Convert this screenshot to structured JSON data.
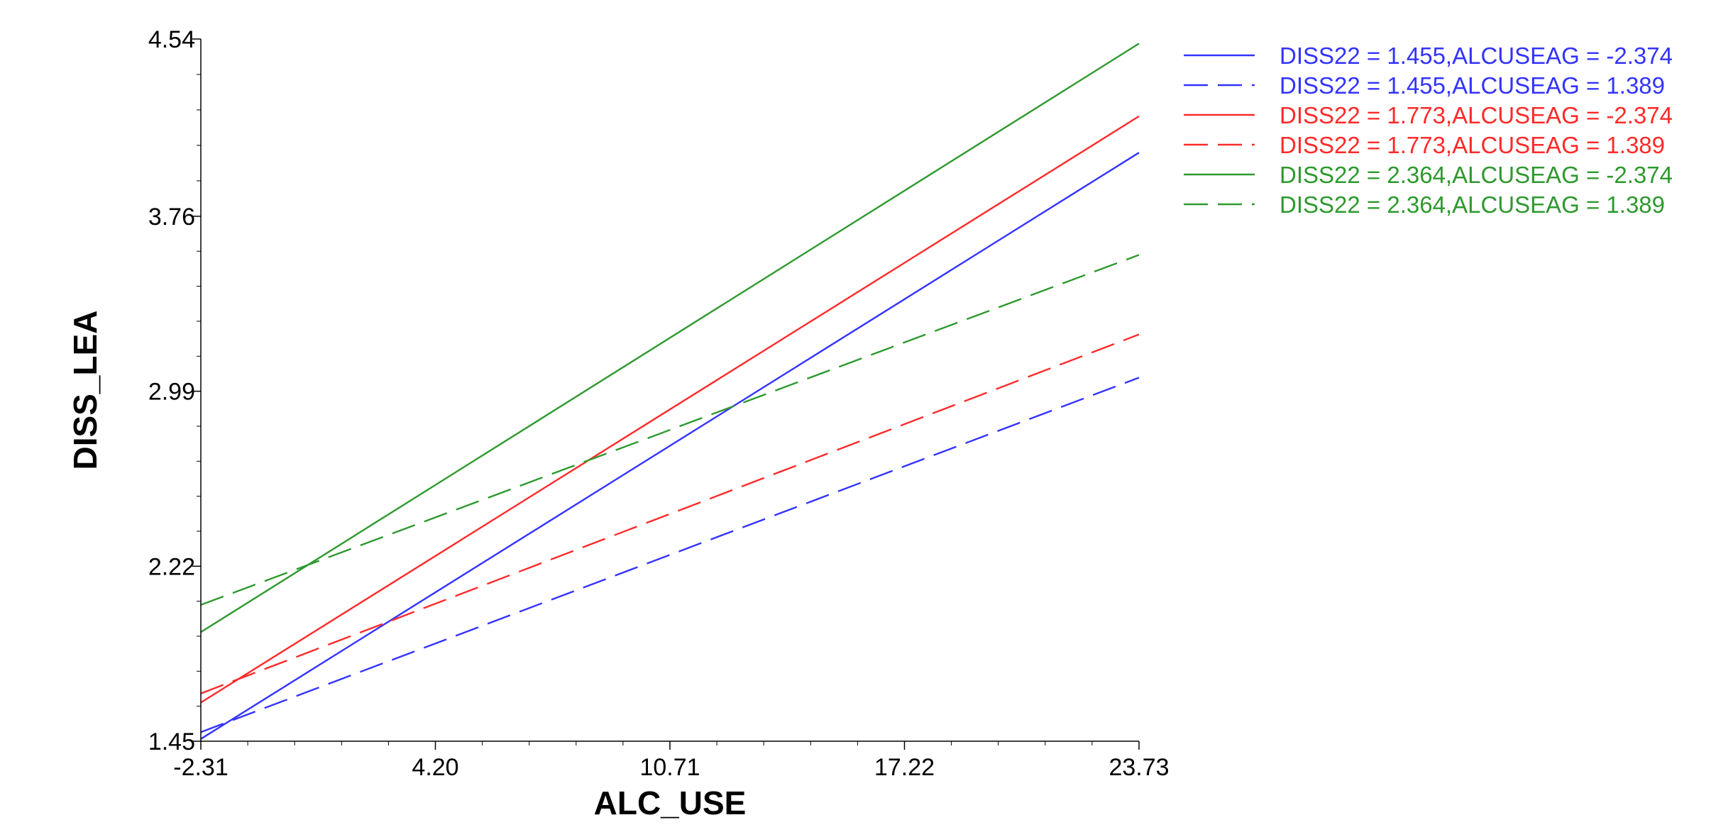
{
  "chart_data": {
    "type": "line",
    "title": "",
    "xlabel": "ALC_USE",
    "ylabel": "DISS_LEA",
    "xlim": [
      -2.31,
      23.73
    ],
    "ylim": [
      1.45,
      4.54
    ],
    "x_ticks": [
      -2.31,
      4.2,
      10.71,
      17.22,
      23.73
    ],
    "x_tick_labels": [
      "-2.31",
      "4.20",
      "10.71",
      "17.22",
      "23.73"
    ],
    "y_ticks": [
      1.45,
      2.22,
      2.99,
      3.76,
      4.54
    ],
    "y_tick_labels": [
      "1.45",
      "2.22",
      "2.99",
      "3.76",
      "4.54"
    ],
    "grid": false,
    "legend_position": "right",
    "series": [
      {
        "name": "DISS22 = 1.455,ALCUSEAG = -2.374",
        "color": "#3333ff",
        "dash": "solid",
        "x": [
          -2.31,
          23.73
        ],
        "y": [
          1.46,
          4.04
        ]
      },
      {
        "name": "DISS22 = 1.455,ALCUSEAG = 1.389",
        "color": "#3333ff",
        "dash": "dashed",
        "x": [
          -2.31,
          23.73
        ],
        "y": [
          1.49,
          3.05
        ]
      },
      {
        "name": "DISS22 = 1.773,ALCUSEAG = -2.374",
        "color": "#ff2a2a",
        "dash": "solid",
        "x": [
          -2.31,
          23.73
        ],
        "y": [
          1.62,
          4.2
        ]
      },
      {
        "name": "DISS22 = 1.773,ALCUSEAG = 1.389",
        "color": "#ff2a2a",
        "dash": "dashed",
        "x": [
          -2.31,
          23.73
        ],
        "y": [
          1.66,
          3.24
        ]
      },
      {
        "name": "DISS22 = 2.364,ALCUSEAG = -2.374",
        "color": "#2e992e",
        "dash": "solid",
        "x": [
          -2.31,
          23.73
        ],
        "y": [
          1.93,
          4.52
        ]
      },
      {
        "name": "DISS22 = 2.364,ALCUSEAG = 1.389",
        "color": "#2e992e",
        "dash": "dashed",
        "x": [
          -2.31,
          23.73
        ],
        "y": [
          2.05,
          3.59
        ]
      }
    ]
  }
}
